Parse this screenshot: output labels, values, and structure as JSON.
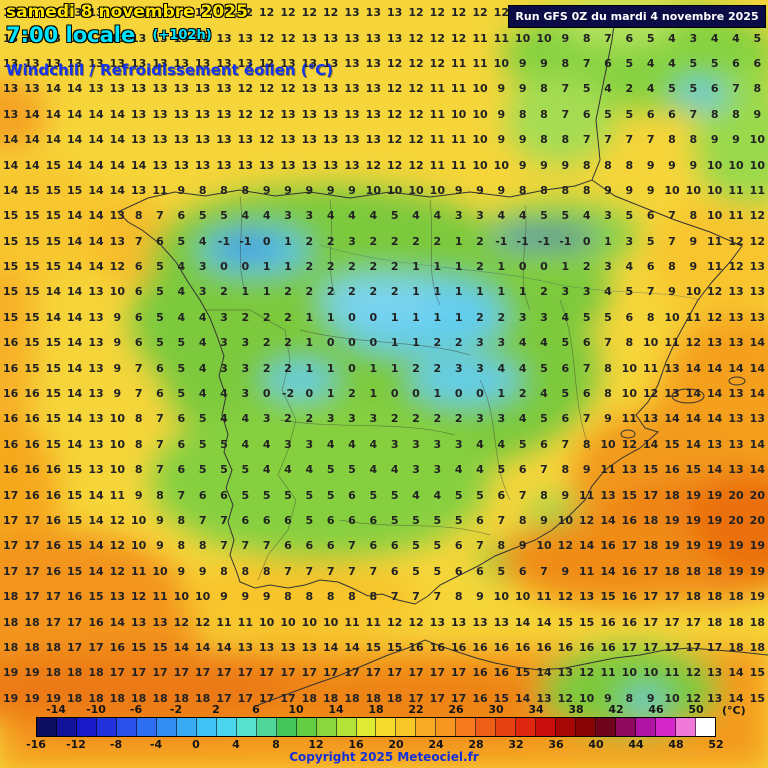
{
  "header": {
    "date_line": "samedi 8 novembre 2025",
    "time_line": "7:00 locale",
    "offset_label": "(+102h)",
    "param_line": "Windchill / Refroidissement éolien (°C)",
    "run_info": "Run GFS 0Z du mardi 4 novembre 2025"
  },
  "grid": {
    "rows": [
      "12 13 13 13 13 13 12 12 13 13 13 12 12 12 12 12 13 13 13 12 12 12 12 12 12 12 12 11 11 12 12 12 12 12 13 13",
      "13 13 13 13 13 13 13 13 13 13 13 13 12 12 13 13 13 13 13 12 12 12 11 11 10 10 9 8 7 6 5 4 3 4 4 5",
      "13 13 13 13 13 13 13 13 13 13 13 13 12 13 13 13 13 13 12 12 12 11 11 10 9 9 8 7 6 5 4 4 5 5 6 6",
      "13 13 14 14 13 13 13 13 13 13 13 12 12 12 13 13 13 13 12 12 11 11 10 9 9 8 7 5 4 2 4 5 5 6 7 8",
      "13 14 14 14 14 14 13 13 13 13 13 12 12 13 13 13 13 13 12 12 11 10 10 9 8 8 7 6 5 5 6 6 7 8 8 9",
      "14 14 14 14 14 14 13 13 13 13 13 13 12 13 13 13 13 13 12 12 11 11 10 9 9 8 8 7 7 7 7 8 8 9 9 10",
      "14 14 15 14 14 14 14 13 13 13 13 13 13 13 13 13 13 12 12 12 11 11 10 10 9 9 9 8 8 8 9 9 9 10 10 10",
      "14 15 15 15 14 14 13 11 9 8 8 8 9 9 9 9 9 10 10 10 10 9 9 9 8 8 8 8 9 9 9 10 10 10 11 11",
      "15 15 15 14 14 13 8 7 6 5 5 4 4 3 3 4 4 4 5 4 4 3 3 4 4 5 5 4 3 5 6 7 8 10 11 12",
      "15 15 15 14 14 13 7 6 5 4 -1 -1 0 1 2 2 3 2 2 2 2 1 2 -1 -1 -1 -1 0 1 3 5 7 9 11 12 12",
      "15 15 15 14 14 12 6 5 4 3 0 0 1 1 2 2 2 2 2 1 1 1 2 1 0 0 1 2 3 4 6 8 9 11 12 13",
      "15 15 14 14 13 10 6 5 4 3 2 1 1 2 2 2 2 2 2 1 1 1 1 1 1 2 3 3 4 5 7 9 10 12 13 13",
      "15 15 14 14 13 9 6 5 4 4 3 2 2 2 1 1 0 0 1 1 1 1 2 2 3 3 4 5 5 6 8 10 11 12 13 13",
      "16 15 15 14 13 9 6 5 5 4 3 3 2 2 1 0 0 0 1 1 2 2 3 3 4 4 5 6 7 8 10 11 12 13 13 14",
      "16 15 15 14 13 9 7 6 5 4 3 3 2 2 1 1 0 1 1 2 2 3 3 4 4 5 6 7 8 10 11 13 14 14 14 14",
      "16 16 15 14 13 9 7 6 5 4 4 3 0 -2 0 1 2 1 0 0 1 0 0 1 2 4 5 6 8 10 12 13 14 14 13 14",
      "16 16 15 14 13 10 8 7 6 5 4 4 3 2 2 3 3 3 2 2 2 2 3 3 4 5 6 7 9 11 13 14 14 14 13 13",
      "16 16 15 14 13 10 8 7 6 5 5 4 4 3 3 4 4 4 3 3 3 3 4 4 5 6 7 8 10 12 14 15 14 13 13 14",
      "16 16 16 15 13 10 8 7 6 5 5 5 4 4 4 5 5 4 4 3 3 4 4 5 6 7 8 9 11 13 15 16 15 14 13 14",
      "17 16 16 15 14 11 9 8 7 6 6 5 5 5 5 5 6 5 5 4 4 5 5 6 7 8 9 11 13 15 17 18 19 19 20 20",
      "17 17 16 15 14 12 10 9 8 7 7 6 6 6 5 6 6 6 5 5 5 5 6 7 8 9 10 12 14 16 18 19 19 19 20 20",
      "17 17 16 15 14 12 10 9 8 8 7 7 7 6 6 6 7 6 6 5 5 6 7 8 9 10 12 14 16 17 18 19 19 19 19 19",
      "17 17 16 15 14 12 11 10 9 9 8 8 8 7 7 7 7 7 6 5 5 6 6 5 6 7 9 11 14 16 17 18 18 18 19 19",
      "18 17 17 16 15 13 12 11 10 10 9 9 9 8 8 8 8 8 7 7 7 8 9 10 10 11 12 13 15 16 17 17 18 18 18 19",
      "18 18 17 17 16 14 13 13 12 12 11 11 10 10 10 10 11 11 12 12 13 13 13 13 14 14 15 15 16 16 17 17 17 18 18 18",
      "18 18 18 17 17 16 15 15 14 14 14 13 13 13 13 14 14 15 15 16 16 16 16 16 16 16 16 16 16 17 17 17 17 17 18 18",
      "19 19 18 18 18 17 17 17 17 17 17 17 17 17 17 17 17 17 17 17 17 17 16 16 15 14 13 12 11 10 10 11 12 13 14 15",
      "19 19 19 18 18 18 18 18 18 18 17 17 17 17 18 18 18 18 18 17 17 17 16 15 14 13 12 10 9 8 9 10 12 13 14 15"
    ]
  },
  "legend": {
    "unit": "(°C)",
    "top_labels": [
      -14,
      -10,
      -6,
      -2,
      2,
      6,
      10,
      14,
      18,
      22,
      26,
      30,
      34,
      38,
      42,
      46,
      50
    ],
    "bottom_labels": [
      -16,
      -12,
      -8,
      -4,
      0,
      4,
      8,
      12,
      16,
      20,
      24,
      28,
      32,
      36,
      40,
      44,
      48,
      52
    ],
    "range": [
      -16,
      52
    ],
    "colors": [
      "#0d0d62",
      "#13139a",
      "#1919c8",
      "#2132dc",
      "#2950ea",
      "#2e6ef0",
      "#338ef4",
      "#39aaf4",
      "#3fc2f4",
      "#4bd6ee",
      "#57e2d0",
      "#4fd698",
      "#45c65a",
      "#63ce44",
      "#8bd63c",
      "#b3e238",
      "#dfea34",
      "#f3da2c",
      "#f7c628",
      "#f7aa24",
      "#f79620",
      "#f77a1c",
      "#ef5e18",
      "#e74214",
      "#df2610",
      "#c70e0c",
      "#a70707",
      "#870404",
      "#6d041c",
      "#8e0a5e",
      "#b014a2",
      "#d327c7",
      "#f07ad8",
      "#ffffff"
    ],
    "copyright": "Copyright 2025 Meteociel.fr"
  },
  "colors": {
    "background_warm": "#f6d53a",
    "title_date": "#ffe400",
    "title_time": "#00e4ff",
    "title_param": "#1535f0",
    "run_box_bg": "#0b0b46",
    "copyright_text": "#1530d8"
  }
}
